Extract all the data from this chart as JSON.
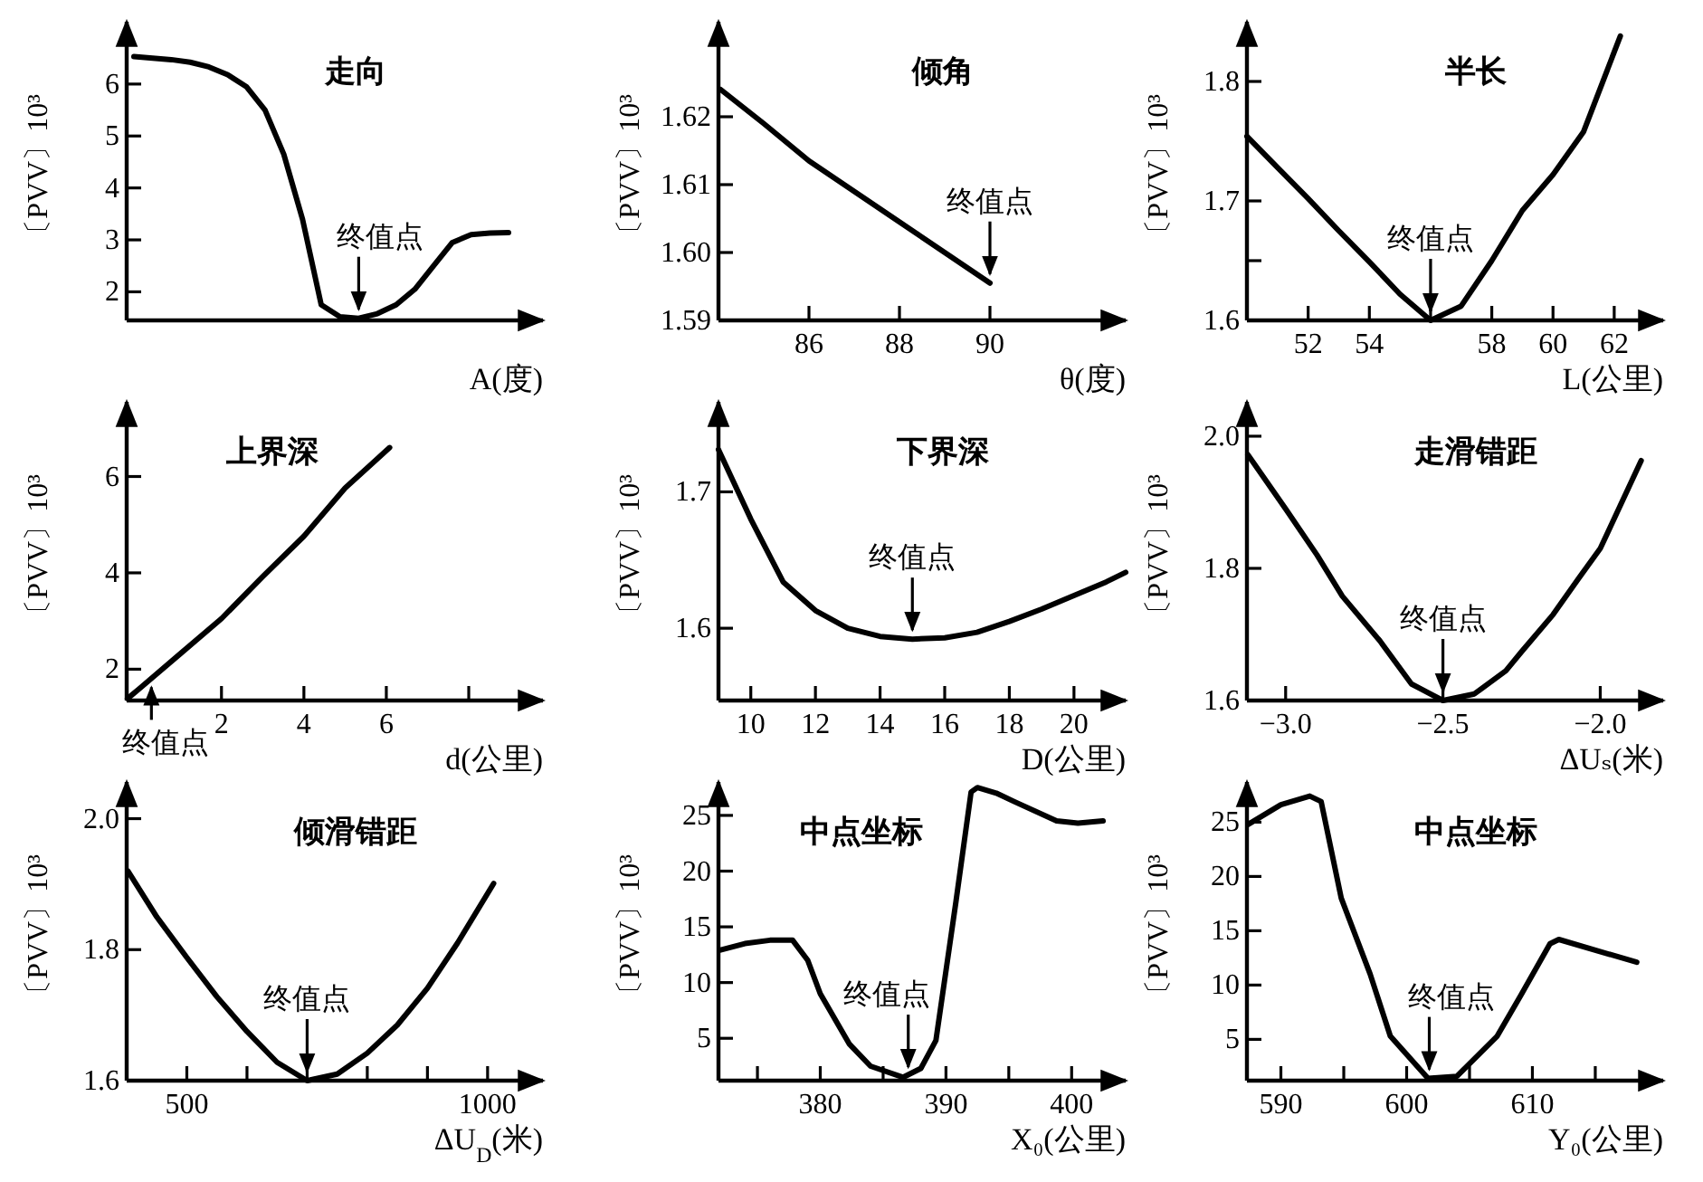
{
  "chart_data": [
    {
      "type": "line",
      "title": "走向",
      "xlabel": "A(度)",
      "ylabel": "〔PVV〕10³",
      "categories": [
        null,
        null,
        null,
        null,
        null,
        null,
        null,
        null,
        null,
        null,
        null,
        null,
        null,
        null,
        null,
        null,
        null,
        null,
        null,
        null,
        null
      ],
      "ylim": [
        1.45,
        7.2
      ],
      "yticks": [
        2,
        3,
        4,
        5,
        6
      ],
      "series": [
        {
          "color": "#000000",
          "values": [
            6.53,
            6.5,
            6.47,
            6.42,
            6.33,
            6.18,
            5.95,
            5.5,
            4.65,
            3.4,
            1.75,
            1.52,
            1.49,
            1.58,
            1.75,
            2.05,
            2.5,
            2.95,
            3.1,
            3.13,
            3.14
          ]
        }
      ],
      "annotations": [
        "终值点"
      ]
    },
    {
      "type": "line",
      "title": "倾角",
      "xlabel": "θ(度)",
      "ylabel": "〔PVV〕10³",
      "x": [
        84.05,
        85,
        86,
        87,
        88,
        89,
        90
      ],
      "xlim": [
        84,
        93
      ],
      "xticks": [
        86,
        88,
        90
      ],
      "ylim": [
        1.59,
        1.634
      ],
      "yticks": [
        1.62,
        1.61,
        {
          "value": 1.6,
          "label": "1.60"
        },
        1.59
      ],
      "series": [
        {
          "color": "#000000",
          "values": [
            1.624,
            1.619,
            1.6135,
            1.609,
            1.6045,
            1.6,
            1.5955
          ]
        }
      ],
      "annotations": [
        {
          "text": "终值点",
          "x": 90,
          "y": 1.5955
        }
      ]
    },
    {
      "type": "line",
      "title": "半长",
      "xlabel": "L(公里)",
      "ylabel": "〔PVV〕10³",
      "x": [
        50,
        51,
        52,
        53,
        54,
        55,
        56,
        57,
        58,
        59,
        60,
        61,
        62.2
      ],
      "xlim": [
        50,
        63.6
      ],
      "xticks": [
        52,
        54,
        {
          "value": 56,
          "label": null
        },
        58,
        60,
        62
      ],
      "ylim": [
        1.6,
        1.85
      ],
      "yticks": [
        1.6,
        {
          "value": 1.65,
          "label": null
        },
        1.7,
        1.8
      ],
      "series": [
        {
          "color": "#000000",
          "values": [
            1.754,
            1.728,
            1.702,
            1.675,
            1.649,
            1.622,
            1.6,
            1.612,
            1.65,
            1.692,
            1.722,
            1.758,
            1.838
          ]
        }
      ],
      "annotations": [
        {
          "text": "终值点",
          "x": 56,
          "y": 1.6
        }
      ]
    },
    {
      "type": "line",
      "title": "上界深",
      "xlabel": "d(公里)",
      "ylabel": "〔PVV〕10³",
      "x": [
        -0.28,
        0,
        1,
        2,
        3,
        4,
        5,
        6.08
      ],
      "xlim": [
        -0.3,
        9.8
      ],
      "xticks": [
        2,
        4,
        6,
        {
          "value": 8,
          "label": null
        }
      ],
      "ylim": [
        1.35,
        7.55
      ],
      "yticks": [
        2,
        4,
        6
      ],
      "series": [
        {
          "color": "#000000",
          "values": [
            1.39,
            1.59,
            2.32,
            3.05,
            3.92,
            4.76,
            5.76,
            6.6
          ]
        }
      ],
      "annotations": [
        {
          "text": "终值点",
          "x": 0.3,
          "y": 1.85
        }
      ]
    },
    {
      "type": "line",
      "title": "下界深",
      "xlabel": "D(公里)",
      "ylabel": "〔PVV〕10³",
      "x": [
        9,
        10,
        11,
        12,
        13,
        14,
        15,
        16,
        17,
        18,
        19,
        20,
        21,
        21.6
      ],
      "xlim": [
        9,
        21.6
      ],
      "xticks": [
        10,
        12,
        14,
        16,
        18,
        20
      ],
      "ylim": [
        1.547,
        1.766
      ],
      "yticks": [
        1.6,
        1.7
      ],
      "series": [
        {
          "color": "#000000",
          "values": [
            1.731,
            1.68,
            1.634,
            1.613,
            1.6,
            1.594,
            1.592,
            1.593,
            1.597,
            1.605,
            1.614,
            1.624,
            1.634,
            1.641
          ]
        }
      ],
      "annotations": [
        {
          "text": "终值点",
          "x": 15,
          "y": 1.592
        }
      ]
    },
    {
      "type": "line",
      "title": "走滑错距",
      "xlabel": "ΔUₛ(米)",
      "ylabel": "〔PVV〕10³",
      "x": [
        -3.12,
        -3.0,
        -2.9,
        -2.82,
        -2.7,
        -2.6,
        -2.5,
        -2.4,
        -2.3,
        -2.25,
        -2.15,
        -2.067,
        -2.0,
        -1.87
      ],
      "xlim": [
        -3.123,
        -1.8
      ],
      "xticks": [
        {
          "value": -3,
          "label": "−3.0"
        },
        {
          "value": -2.5,
          "label": "−2.5"
        },
        {
          "value": -2,
          "label": "−2.0"
        }
      ],
      "ylim": [
        1.6,
        2.052
      ],
      "yticks": [
        1.6,
        1.8,
        {
          "value": 2,
          "label": "2.0"
        }
      ],
      "series": [
        {
          "color": "#000000",
          "values": [
            1.972,
            1.89,
            1.82,
            1.758,
            1.69,
            1.625,
            1.6,
            1.61,
            1.645,
            1.674,
            1.73,
            1.786,
            1.83,
            1.963
          ]
        }
      ],
      "annotations": [
        {
          "text": "终值点",
          "x": -2.5,
          "y": 1.6
        }
      ]
    },
    {
      "type": "line",
      "title": "倾滑错距",
      "xlabel": "ΔU$_{D}$(米)",
      "ylabel": "〔PVV〕10³",
      "x": [
        402,
        450,
        500,
        550,
        600,
        650,
        700,
        750,
        800,
        850,
        900,
        950,
        1010
      ],
      "xlim": [
        400,
        1092
      ],
      "xticks": [
        500,
        {
          "value": 600,
          "label": null
        },
        {
          "value": 700,
          "label": null
        },
        {
          "value": 800,
          "label": null
        },
        {
          "value": 900,
          "label": null
        },
        1000
      ],
      "ylim": [
        1.6,
        2.056
      ],
      "yticks": [
        1.6,
        1.8,
        {
          "value": 2,
          "label": "2.0"
        }
      ],
      "series": [
        {
          "color": "#000000",
          "values": [
            1.92,
            1.85,
            1.788,
            1.728,
            1.675,
            1.628,
            1.6,
            1.61,
            1.642,
            1.685,
            1.741,
            1.81,
            1.901
          ]
        }
      ],
      "annotations": [
        {
          "text": "终值点",
          "x": 700,
          "y": 1.6
        }
      ]
    },
    {
      "type": "line",
      "title": "中点坐标",
      "xlabel": "X₀(公里)",
      "ylabel": "〔PVV〕10³",
      "x": [
        372,
        374,
        376,
        377.8,
        379,
        380,
        382.3,
        384,
        386.6,
        388,
        389.2,
        390.8,
        392,
        392.5,
        394,
        395.5,
        398.8,
        400.5,
        402.5
      ],
      "xlim": [
        371.9,
        404.3
      ],
      "xticks": [
        {
          "value": 375,
          "label": null
        },
        380,
        {
          "value": 385,
          "label": null
        },
        390,
        {
          "value": 395,
          "label": null
        },
        400
      ],
      "ylim": [
        1.2,
        28
      ],
      "yticks": [
        5,
        10,
        15,
        20,
        25
      ],
      "series": [
        {
          "color": "#000000",
          "values": [
            12.9,
            13.5,
            13.8,
            13.8,
            12.0,
            9.0,
            4.5,
            2.5,
            1.5,
            2.3,
            4.8,
            17.3,
            27.1,
            27.5,
            27.0,
            26.2,
            24.5,
            24.3,
            24.5
          ]
        }
      ],
      "annotations": [
        {
          "text": "终值点",
          "x": 387,
          "y": 1.6
        }
      ]
    },
    {
      "type": "line",
      "title": "中点坐标",
      "xlabel": "Y₀(公里)",
      "ylabel": "〔PVV〕10³",
      "x": [
        587.4,
        590,
        592.3,
        593.2,
        594.8,
        597.1,
        598.7,
        601.7,
        604,
        607.2,
        609.1,
        611.4,
        612.1,
        618.3
      ],
      "xlim": [
        587.3,
        620.4
      ],
      "xticks": [
        590,
        {
          "value": 595,
          "label": null
        },
        600,
        {
          "value": 605,
          "label": null
        },
        610,
        {
          "value": 615,
          "label": null
        }
      ],
      "ylim": [
        1.2,
        28.7
      ],
      "yticks": [
        5,
        10,
        15,
        20,
        25
      ],
      "series": [
        {
          "color": "#000000",
          "values": [
            24.8,
            26.6,
            27.4,
            26.9,
            18.0,
            11.0,
            5.3,
            1.4,
            1.6,
            5.3,
            9.1,
            13.8,
            14.2,
            12.1
          ]
        }
      ],
      "annotations": [
        {
          "text": "终值点",
          "x": 601.8,
          "y": 1.4
        }
      ]
    }
  ]
}
